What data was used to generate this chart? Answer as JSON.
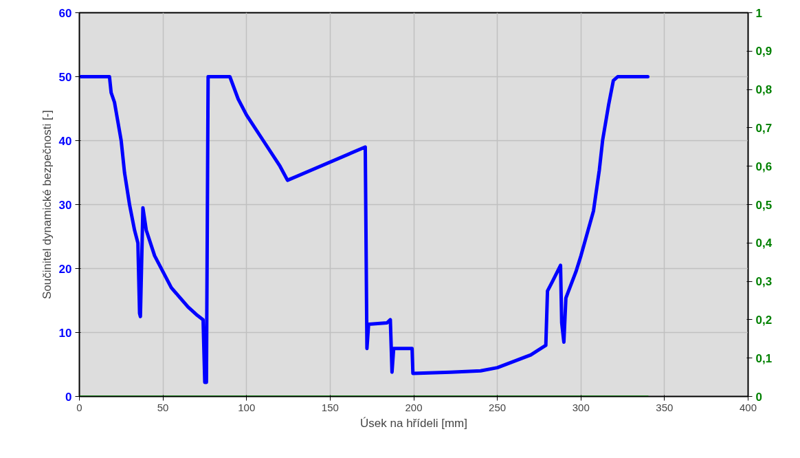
{
  "chart_data": {
    "type": "line",
    "xlabel": "Úsek na hřídeli [mm]",
    "ylabel": "Součinitel dynamické bezpečnosti [-]",
    "xlim": [
      0,
      400
    ],
    "xticks": [
      0,
      50,
      100,
      150,
      200,
      250,
      300,
      350,
      400
    ],
    "ylim": [
      0,
      60
    ],
    "yticks": [
      0,
      10,
      20,
      30,
      40,
      50,
      60
    ],
    "y2lim": [
      0,
      1
    ],
    "y2ticks": [
      {
        "value": 0,
        "label": "0"
      },
      {
        "value": 0.1,
        "label": "0,1"
      },
      {
        "value": 0.2,
        "label": "0,2"
      },
      {
        "value": 0.3,
        "label": "0,3"
      },
      {
        "value": 0.4,
        "label": "0,4"
      },
      {
        "value": 0.5,
        "label": "0,5"
      },
      {
        "value": 0.6,
        "label": "0,6"
      },
      {
        "value": 0.7,
        "label": "0,7"
      },
      {
        "value": 0.8,
        "label": "0,8"
      },
      {
        "value": 0.9,
        "label": "0,9"
      },
      {
        "value": 1,
        "label": "1"
      }
    ],
    "grid": true,
    "marker": "none",
    "line_style": "solid",
    "series": [
      {
        "color": "#0000ff",
        "x": [
          0,
          18,
          19,
          21,
          23,
          25,
          27,
          30,
          33,
          35,
          36,
          36.5,
          38,
          40,
          45,
          50,
          55,
          60,
          65,
          70,
          74,
          75,
          76,
          77,
          90,
          95,
          100,
          110,
          120,
          124.5,
          171,
          172,
          173,
          184,
          186,
          187,
          188,
          199,
          199.5,
          222,
          240,
          250,
          260,
          270,
          279,
          280,
          283,
          287.8,
          288.5,
          289.8,
          291,
          297,
          300,
          307.5,
          311,
          313,
          316.5,
          319.4,
          322,
          340
        ],
        "values": [
          50,
          50,
          47.5,
          46,
          43,
          40,
          35,
          30,
          26,
          24,
          13,
          12.5,
          29.5,
          26,
          22,
          19.5,
          17,
          15.5,
          14,
          12.8,
          12,
          2.2,
          2.2,
          50,
          50,
          46.5,
          44,
          40,
          36,
          33.8,
          39,
          7.5,
          11.3,
          11.5,
          12,
          3.8,
          7.5,
          7.5,
          3.6,
          3.8,
          4,
          4.5,
          5.5,
          6.5,
          8,
          16.5,
          18,
          20.5,
          11.5,
          8.5,
          15.4,
          19.5,
          22,
          29,
          35.4,
          40.1,
          45.5,
          49.4,
          50,
          50
        ]
      },
      {
        "color": "#008000",
        "axis": "y2",
        "x": [
          0,
          340
        ],
        "values": [
          0,
          0
        ]
      }
    ]
  }
}
